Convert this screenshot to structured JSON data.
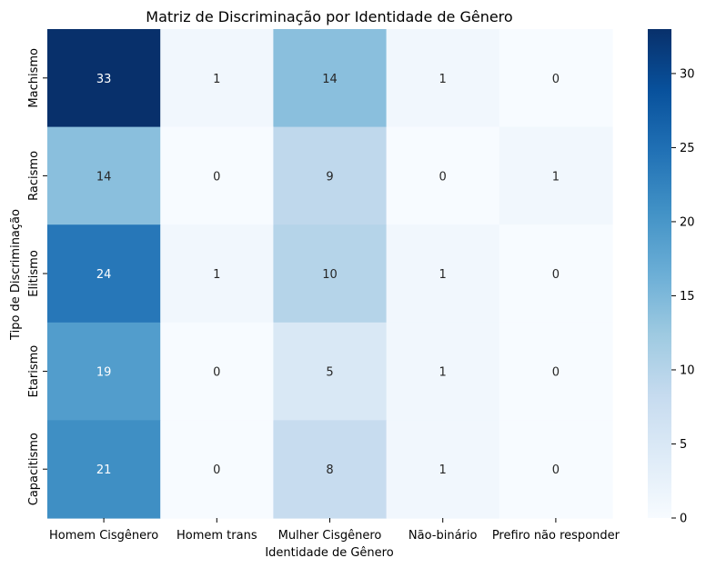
{
  "chart_data": {
    "type": "heatmap",
    "title": "Matriz de Discriminação por Identidade de Gênero",
    "xlabel": "Identidade de Gênero",
    "ylabel": "Tipo de Discriminação",
    "x_categories": [
      "Homem Cisgênero",
      "Homem trans",
      "Mulher Cisgênero",
      "Não-binário",
      "Prefiro não responder"
    ],
    "y_categories": [
      "Machismo",
      "Racismo",
      "Elitismo",
      "Etarismo",
      "Capacitismo"
    ],
    "values": [
      [
        33,
        1,
        14,
        1,
        0
      ],
      [
        14,
        0,
        9,
        0,
        1
      ],
      [
        24,
        1,
        10,
        1,
        0
      ],
      [
        19,
        0,
        5,
        1,
        0
      ],
      [
        21,
        0,
        8,
        1,
        0
      ]
    ],
    "colormap": "Blues",
    "vmin": 0,
    "vmax": 33,
    "colorbar_ticks": [
      0,
      5,
      10,
      15,
      20,
      25,
      30
    ],
    "annotations": true
  }
}
